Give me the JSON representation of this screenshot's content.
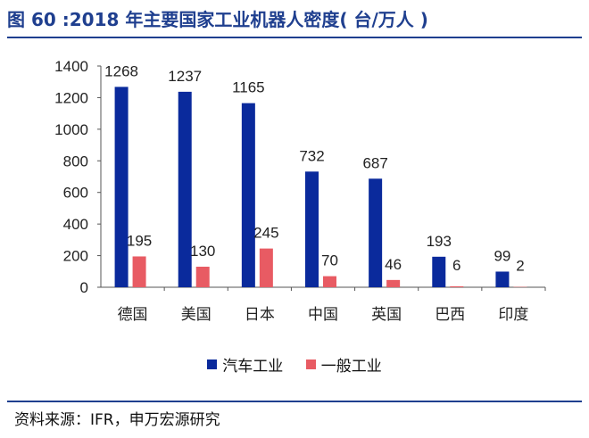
{
  "title": "图 60 :2018 年主要国家工业机器人密度( 台/万人 )",
  "source": "资料来源：IFR，申万宏源研究",
  "colors": {
    "brand": "#1f3f8f",
    "series_auto": "#0a2a9c",
    "series_general": "#e85b63"
  },
  "chart_data": {
    "type": "bar",
    "categories": [
      "德国",
      "美国",
      "日本",
      "中国",
      "英国",
      "巴西",
      "印度"
    ],
    "series": [
      {
        "name": "汽车工业",
        "values": [
          1268,
          1237,
          1165,
          732,
          687,
          193,
          99
        ]
      },
      {
        "name": "一般工业",
        "values": [
          195,
          130,
          245,
          70,
          46,
          6,
          2
        ]
      }
    ],
    "yticks": [
      "0",
      "200",
      "400",
      "600",
      "800",
      "1000",
      "1200",
      "1400"
    ],
    "ylim": [
      0,
      1400
    ],
    "legend_position": "bottom",
    "grid": false
  }
}
